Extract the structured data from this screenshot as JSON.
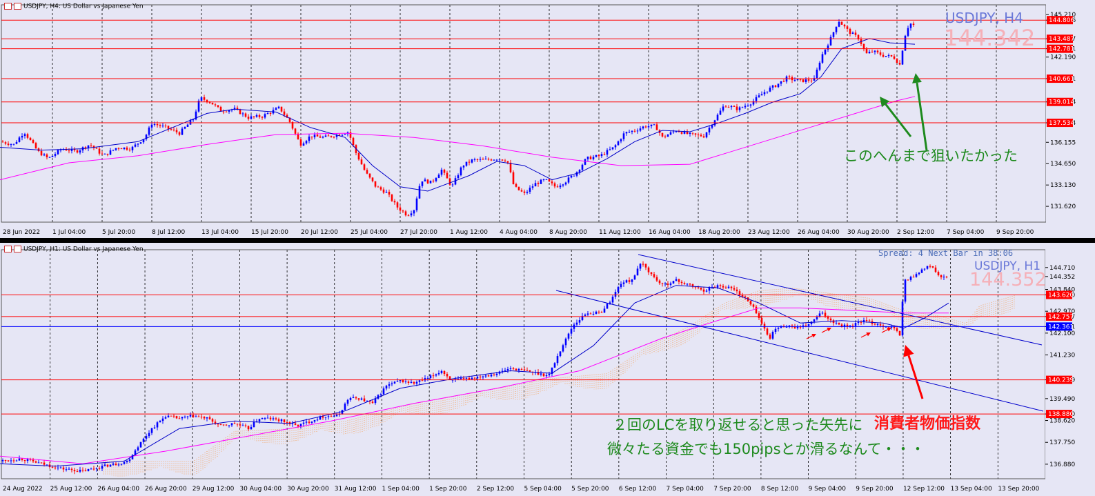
{
  "colors": {
    "background": "#e6e6f5",
    "bull": "#0000ff",
    "bear": "#ff0000",
    "level": "#ff0000",
    "ma_fast": "#0000c8",
    "ma_slow": "#ff00ff",
    "ichimoku": "#f4a460",
    "trend": "#0000cc",
    "annotation_green": "#1e8a1e",
    "annotation_red": "#ff1a1a"
  },
  "top_chart": {
    "header": "USDJPY, H4:  US Dollar vs Japanese Yen",
    "symbol_watermark": "USDJPY, H4",
    "price_watermark": "144.342",
    "annotation": "このへんまで狙いたかった",
    "icons": [
      "chart-icon",
      "up-arrow-icon",
      "green-arrow-icon"
    ]
  },
  "bottom_chart": {
    "header": "USDJPY, H1:  US Dollar vs Japanese Yen",
    "symbol_watermark": "USDJPY, H1",
    "price_watermark": "144.352",
    "info": "Spread: 4  Next Bar in 38:06",
    "annotation_line1": "２回のLCを取り返せると思った矢先に",
    "annotation_line2": "微々たる資金でも150pipsとか滑るなんて・・・",
    "cpi_label": "消費者物価指数"
  },
  "chart_data": [
    {
      "type": "candlestick",
      "title": "USDJPY, H4",
      "ylim": [
        130.5,
        145.5
      ],
      "y_ticks": [
        "145.210",
        "144.806",
        "143.487",
        "142.781",
        "142.190",
        "140.661",
        "139.014",
        "137.534",
        "136.155",
        "134.650",
        "133.130",
        "131.620"
      ],
      "x_tick_labels": [
        "28 Jun 2022",
        "1 Jul 04:00",
        "5 Jul 20:00",
        "8 Jul 12:00",
        "13 Jul 04:00",
        "15 Jul 20:00",
        "20 Jul 12:00",
        "25 Jul 04:00",
        "27 Jul 20:00",
        "1 Aug 12:00",
        "4 Aug 04:00",
        "8 Aug 20:00",
        "11 Aug 12:00",
        "16 Aug 04:00",
        "18 Aug 20:00",
        "23 Aug 12:00",
        "26 Aug 04:00",
        "30 Aug 20:00",
        "2 Sep 12:00",
        "7 Sep 04:00",
        "9 Sep 20:00"
      ],
      "levels": [
        {
          "price": 144.806,
          "label": "144.806"
        },
        {
          "price": 143.487,
          "label": "143.487"
        },
        {
          "price": 142.781,
          "label": "142.781"
        },
        {
          "price": 140.661,
          "label": "140.661"
        },
        {
          "price": 139.014,
          "label": "139.014"
        },
        {
          "price": 137.534,
          "label": "137.534"
        }
      ],
      "close_path": [
        [
          0,
          136.2
        ],
        [
          20,
          136.0
        ],
        [
          35,
          136.9
        ],
        [
          55,
          135.5
        ],
        [
          70,
          135.0
        ],
        [
          90,
          135.7
        ],
        [
          110,
          135.5
        ],
        [
          130,
          136.0
        ],
        [
          150,
          135.2
        ],
        [
          170,
          135.8
        ],
        [
          190,
          135.7
        ],
        [
          210,
          136.5
        ],
        [
          220,
          137.5
        ],
        [
          240,
          137.2
        ],
        [
          260,
          136.8
        ],
        [
          280,
          137.8
        ],
        [
          290,
          139.3
        ],
        [
          305,
          139.0
        ],
        [
          320,
          138.4
        ],
        [
          340,
          138.5
        ],
        [
          360,
          137.9
        ],
        [
          380,
          138.0
        ],
        [
          405,
          138.6
        ],
        [
          420,
          137.6
        ],
        [
          435,
          136.0
        ],
        [
          450,
          136.6
        ],
        [
          470,
          136.5
        ],
        [
          490,
          136.7
        ],
        [
          505,
          136.9
        ],
        [
          515,
          135.5
        ],
        [
          530,
          134.0
        ],
        [
          545,
          133.0
        ],
        [
          560,
          132.6
        ],
        [
          575,
          131.6
        ],
        [
          590,
          131.0
        ],
        [
          600,
          131.4
        ],
        [
          610,
          133.5
        ],
        [
          625,
          133.3
        ],
        [
          640,
          134.2
        ],
        [
          655,
          133.0
        ],
        [
          670,
          134.5
        ],
        [
          685,
          134.9
        ],
        [
          700,
          134.9
        ],
        [
          720,
          135.0
        ],
        [
          735,
          134.9
        ],
        [
          745,
          133.0
        ],
        [
          760,
          132.5
        ],
        [
          775,
          133.2
        ],
        [
          790,
          133.5
        ],
        [
          805,
          133.0
        ],
        [
          820,
          133.4
        ],
        [
          835,
          134.0
        ],
        [
          850,
          135.0
        ],
        [
          870,
          135.2
        ],
        [
          890,
          135.8
        ],
        [
          905,
          136.8
        ],
        [
          920,
          137.0
        ],
        [
          935,
          137.3
        ],
        [
          950,
          137.3
        ],
        [
          960,
          136.5
        ],
        [
          980,
          137.0
        ],
        [
          1000,
          136.7
        ],
        [
          1020,
          136.6
        ],
        [
          1035,
          137.7
        ],
        [
          1050,
          138.8
        ],
        [
          1070,
          138.5
        ],
        [
          1090,
          139.0
        ],
        [
          1110,
          139.8
        ],
        [
          1125,
          140.2
        ],
        [
          1140,
          140.7
        ],
        [
          1160,
          140.5
        ],
        [
          1180,
          140.6
        ],
        [
          1190,
          142.2
        ],
        [
          1205,
          143.6
        ],
        [
          1215,
          144.8
        ],
        [
          1230,
          144.0
        ],
        [
          1245,
          143.5
        ],
        [
          1255,
          142.4
        ],
        [
          1265,
          142.6
        ],
        [
          1280,
          142.3
        ],
        [
          1295,
          142.2
        ],
        [
          1305,
          141.6
        ],
        [
          1310,
          143.5
        ],
        [
          1318,
          144.6
        ],
        [
          1326,
          144.4
        ]
      ],
      "ma_fast_path": [
        [
          0,
          135.8
        ],
        [
          60,
          135.6
        ],
        [
          120,
          135.7
        ],
        [
          200,
          136.2
        ],
        [
          260,
          137.4
        ],
        [
          300,
          138.2
        ],
        [
          340,
          138.5
        ],
        [
          400,
          138.3
        ],
        [
          450,
          137.2
        ],
        [
          500,
          136.5
        ],
        [
          540,
          134.5
        ],
        [
          580,
          133.0
        ],
        [
          620,
          132.7
        ],
        [
          680,
          133.8
        ],
        [
          720,
          134.8
        ],
        [
          760,
          134.5
        ],
        [
          800,
          133.5
        ],
        [
          840,
          134.0
        ],
        [
          880,
          135.0
        ],
        [
          920,
          136.2
        ],
        [
          960,
          137.0
        ],
        [
          1000,
          136.9
        ],
        [
          1040,
          137.5
        ],
        [
          1080,
          138.2
        ],
        [
          1120,
          139.0
        ],
        [
          1160,
          139.6
        ],
        [
          1190,
          140.8
        ],
        [
          1220,
          142.8
        ],
        [
          1260,
          143.5
        ],
        [
          1290,
          143.2
        ],
        [
          1326,
          143.1
        ]
      ],
      "ma_slow_path": [
        [
          0,
          133.5
        ],
        [
          100,
          134.7
        ],
        [
          200,
          135.2
        ],
        [
          300,
          136.0
        ],
        [
          400,
          136.7
        ],
        [
          500,
          136.8
        ],
        [
          600,
          136.5
        ],
        [
          700,
          135.9
        ],
        [
          800,
          135.1
        ],
        [
          900,
          134.5
        ],
        [
          1000,
          134.6
        ],
        [
          1060,
          135.5
        ],
        [
          1120,
          136.4
        ],
        [
          1180,
          137.3
        ],
        [
          1240,
          138.2
        ],
        [
          1300,
          139.1
        ],
        [
          1326,
          139.4
        ]
      ],
      "green_arrows": [
        {
          "from": [
            1343,
            218
          ],
          "to": [
            1327,
            106
          ]
        },
        {
          "from": [
            1320,
            198
          ],
          "to": [
            1275,
            140
          ]
        }
      ]
    },
    {
      "type": "candlestick",
      "title": "USDJPY, H1",
      "ylim": [
        136.3,
        145.2
      ],
      "y_ticks": [
        "144.710",
        "144.352",
        "143.840",
        "143.620",
        "142.970",
        "142.757",
        "142.361",
        "142.100",
        "141.230",
        "140.239",
        "139.490",
        "138.880",
        "138.620",
        "137.750",
        "136.880"
      ],
      "x_tick_labels": [
        "24 Aug 2022",
        "25 Aug 12:00",
        "26 Aug 04:00",
        "26 Aug 20:00",
        "29 Aug 12:00",
        "30 Aug 04:00",
        "30 Aug 20:00",
        "31 Aug 12:00",
        "1 Sep 04:00",
        "1 Sep 20:00",
        "2 Sep 12:00",
        "5 Sep 04:00",
        "5 Sep 20:00",
        "6 Sep 12:00",
        "7 Sep 04:00",
        "7 Sep 20:00",
        "8 Sep 12:00",
        "9 Sep 04:00",
        "9 Sep 20:00",
        "12 Sep 12:00",
        "13 Sep 04:00",
        "13 Sep 20:00"
      ],
      "levels": [
        {
          "price": 143.62,
          "label": "143.620",
          "color": "#ff0000"
        },
        {
          "price": 142.757,
          "label": "142.757",
          "color": "#ff0000"
        },
        {
          "price": 142.361,
          "label": "142.361",
          "color": "#0000ff"
        },
        {
          "price": 140.239,
          "label": "140.239",
          "color": "#ff0000"
        },
        {
          "price": 138.88,
          "label": "138.880",
          "color": "#ff0000"
        }
      ],
      "close_path": [
        [
          0,
          137.0
        ],
        [
          30,
          137.1
        ],
        [
          60,
          136.9
        ],
        [
          90,
          136.7
        ],
        [
          120,
          136.6
        ],
        [
          150,
          136.8
        ],
        [
          170,
          136.9
        ],
        [
          185,
          137.0
        ],
        [
          200,
          137.6
        ],
        [
          220,
          138.3
        ],
        [
          240,
          138.8
        ],
        [
          260,
          138.7
        ],
        [
          280,
          138.8
        ],
        [
          300,
          138.7
        ],
        [
          320,
          138.4
        ],
        [
          340,
          138.5
        ],
        [
          360,
          138.3
        ],
        [
          375,
          138.7
        ],
        [
          390,
          138.7
        ],
        [
          410,
          138.6
        ],
        [
          430,
          138.4
        ],
        [
          450,
          138.6
        ],
        [
          470,
          138.8
        ],
        [
          490,
          138.8
        ],
        [
          505,
          139.5
        ],
        [
          520,
          139.5
        ],
        [
          540,
          139.3
        ],
        [
          560,
          140.0
        ],
        [
          580,
          140.2
        ],
        [
          600,
          140.1
        ],
        [
          620,
          140.3
        ],
        [
          640,
          140.6
        ],
        [
          655,
          140.2
        ],
        [
          680,
          140.3
        ],
        [
          700,
          140.4
        ],
        [
          720,
          140.5
        ],
        [
          740,
          140.7
        ],
        [
          760,
          140.6
        ],
        [
          780,
          140.5
        ],
        [
          795,
          140.4
        ],
        [
          810,
          141.3
        ],
        [
          830,
          142.4
        ],
        [
          850,
          142.9
        ],
        [
          870,
          142.9
        ],
        [
          885,
          143.4
        ],
        [
          900,
          144.1
        ],
        [
          915,
          144.2
        ],
        [
          930,
          144.9
        ],
        [
          945,
          144.4
        ],
        [
          960,
          144.0
        ],
        [
          980,
          144.2
        ],
        [
          1000,
          144.0
        ],
        [
          1020,
          143.8
        ],
        [
          1040,
          144.0
        ],
        [
          1060,
          143.9
        ],
        [
          1080,
          143.5
        ],
        [
          1095,
          143.0
        ],
        [
          1105,
          142.4
        ],
        [
          1115,
          141.9
        ],
        [
          1125,
          142.3
        ],
        [
          1140,
          142.4
        ],
        [
          1160,
          142.3
        ],
        [
          1175,
          142.5
        ],
        [
          1190,
          142.9
        ],
        [
          1205,
          142.6
        ],
        [
          1220,
          142.4
        ],
        [
          1235,
          142.4
        ],
        [
          1250,
          142.6
        ],
        [
          1265,
          142.5
        ],
        [
          1280,
          142.4
        ],
        [
          1295,
          142.3
        ],
        [
          1305,
          142.0
        ],
        [
          1310,
          144.2
        ],
        [
          1320,
          144.3
        ],
        [
          1335,
          144.6
        ],
        [
          1350,
          144.8
        ],
        [
          1362,
          144.3
        ],
        [
          1375,
          144.3
        ]
      ],
      "ma_fast_path": [
        [
          0,
          136.9
        ],
        [
          80,
          136.8
        ],
        [
          180,
          137.0
        ],
        [
          260,
          138.3
        ],
        [
          340,
          138.6
        ],
        [
          420,
          138.5
        ],
        [
          500,
          139.0
        ],
        [
          580,
          139.9
        ],
        [
          660,
          140.3
        ],
        [
          740,
          140.6
        ],
        [
          800,
          140.5
        ],
        [
          860,
          141.6
        ],
        [
          920,
          143.3
        ],
        [
          980,
          144.0
        ],
        [
          1040,
          143.9
        ],
        [
          1100,
          143.3
        ],
        [
          1160,
          142.5
        ],
        [
          1220,
          142.6
        ],
        [
          1280,
          142.5
        ],
        [
          1310,
          142.3
        ],
        [
          1340,
          142.7
        ],
        [
          1375,
          143.3
        ]
      ],
      "ma_slow_path": [
        [
          0,
          137.2
        ],
        [
          120,
          136.9
        ],
        [
          240,
          137.4
        ],
        [
          360,
          138.0
        ],
        [
          480,
          138.6
        ],
        [
          600,
          139.3
        ],
        [
          720,
          139.9
        ],
        [
          840,
          140.6
        ],
        [
          960,
          141.9
        ],
        [
          1040,
          142.6
        ],
        [
          1100,
          143.1
        ],
        [
          1160,
          143.1
        ],
        [
          1240,
          143.0
        ],
        [
          1310,
          142.9
        ],
        [
          1375,
          142.9
        ]
      ],
      "ichimoku_path": [
        [
          150,
          137.0
        ],
        [
          280,
          137.0
        ],
        [
          340,
          138.2
        ],
        [
          420,
          138.3
        ],
        [
          500,
          138.6
        ],
        [
          600,
          139.3
        ],
        [
          700,
          139.8
        ],
        [
          800,
          140.3
        ],
        [
          880,
          140.5
        ],
        [
          940,
          141.6
        ],
        [
          1000,
          142.4
        ],
        [
          1050,
          143.3
        ],
        [
          1100,
          143.8
        ],
        [
          1150,
          143.9
        ],
        [
          1200,
          143.7
        ],
        [
          1260,
          143.5
        ],
        [
          1310,
          143.0
        ],
        [
          1360,
          142.8
        ],
        [
          1400,
          142.5
        ],
        [
          1420,
          143.2
        ],
        [
          1470,
          143.6
        ]
      ],
      "trend_lines": [
        {
          "from": [
            925,
            369
          ],
          "to": [
            1510,
            500
          ]
        },
        {
          "from": [
            806,
            421
          ],
          "to": [
            1512,
            596
          ]
        }
      ],
      "red_arrows_small": [
        [
          1183,
          484
        ],
        [
          1205,
          475
        ],
        [
          1262,
          482
        ],
        [
          1292,
          475
        ]
      ],
      "cpi_arrow": {
        "from": [
          1337,
          578
        ],
        "to": [
          1312,
          500
        ]
      }
    }
  ]
}
